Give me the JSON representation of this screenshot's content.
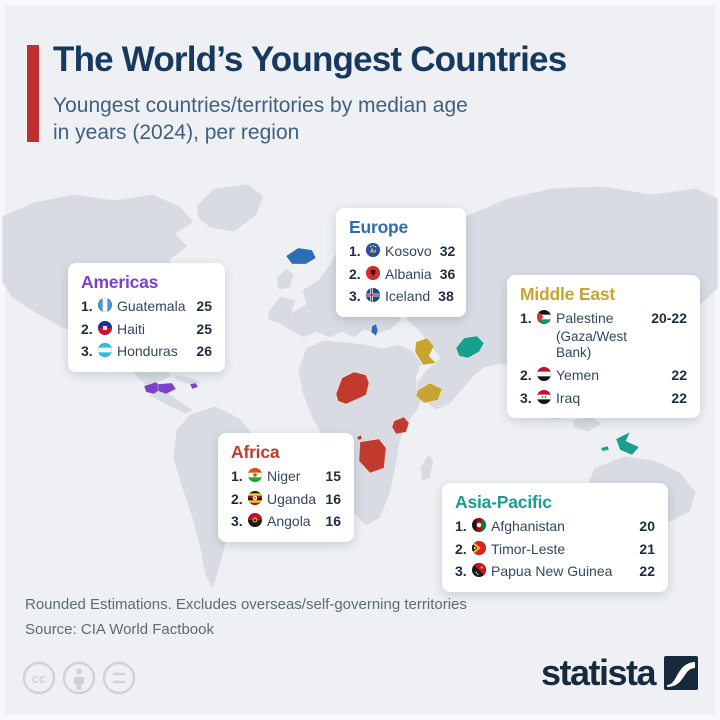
{
  "header": {
    "title": "The World’s Youngest Countries",
    "subtitle": "Youngest countries/territories by median age\nin years (2024), per region",
    "accent_color": "#c22f2f"
  },
  "regions": [
    {
      "key": "americas",
      "name": "Americas",
      "color": "#7c42c8",
      "entries": [
        {
          "rank": "1.",
          "flag": "guatemala",
          "country": "Guatemala",
          "value": "25"
        },
        {
          "rank": "2.",
          "flag": "haiti",
          "country": "Haiti",
          "value": "25"
        },
        {
          "rank": "3.",
          "flag": "honduras",
          "country": "Honduras",
          "value": "26"
        }
      ]
    },
    {
      "key": "europe",
      "name": "Europe",
      "color": "#2d6db7",
      "entries": [
        {
          "rank": "1.",
          "flag": "kosovo",
          "country": "Kosovo",
          "value": "32"
        },
        {
          "rank": "2.",
          "flag": "albania",
          "country": "Albania",
          "value": "36"
        },
        {
          "rank": "3.",
          "flag": "iceland",
          "country": "Iceland",
          "value": "38"
        }
      ]
    },
    {
      "key": "middle-east",
      "name": "Middle East",
      "color": "#c9a42f",
      "entries": [
        {
          "rank": "1.",
          "flag": "palestine",
          "country": "Palestine",
          "sub": "(Gaza/West Bank)",
          "value": "20-22"
        },
        {
          "rank": "2.",
          "flag": "yemen",
          "country": "Yemen",
          "value": "22"
        },
        {
          "rank": "3.",
          "flag": "iraq",
          "country": "Iraq",
          "value": "22"
        }
      ]
    },
    {
      "key": "africa",
      "name": "Africa",
      "color": "#c23a2e",
      "entries": [
        {
          "rank": "1.",
          "flag": "niger",
          "country": "Niger",
          "value": "15"
        },
        {
          "rank": "2.",
          "flag": "uganda",
          "country": "Uganda",
          "value": "16"
        },
        {
          "rank": "3.",
          "flag": "angola",
          "country": "Angola",
          "value": "16"
        }
      ]
    },
    {
      "key": "asia-pacific",
      "name": "Asia-Pacific",
      "color": "#189f8d",
      "entries": [
        {
          "rank": "1.",
          "flag": "afghanistan",
          "country": "Afghanistan",
          "value": "20"
        },
        {
          "rank": "2.",
          "flag": "timor-leste",
          "country": "Timor-Leste",
          "value": "21"
        },
        {
          "rank": "3.",
          "flag": "papua-new-guinea",
          "country": "Papua New Guinea",
          "value": "22"
        }
      ]
    }
  ],
  "map": {
    "land_color": "#d8dce2",
    "background": "#eef0f4"
  },
  "footer": {
    "note": "Rounded Estimations. Excludes overseas/self-governing territories",
    "source": "Source: CIA World Factbook",
    "license_icons": [
      "cc-icon",
      "attribution-icon",
      "equal-icon"
    ],
    "brand": "statista",
    "brand_color": "#16293d"
  },
  "chart_data": {
    "type": "table",
    "title": "The World’s Youngest Countries",
    "subtitle": "Youngest countries/territories by median age in years (2024), per region",
    "unit": "median age in years",
    "groups": [
      {
        "region": "Americas",
        "rows": [
          [
            "Guatemala",
            25
          ],
          [
            "Haiti",
            25
          ],
          [
            "Honduras",
            26
          ]
        ]
      },
      {
        "region": "Europe",
        "rows": [
          [
            "Kosovo",
            32
          ],
          [
            "Albania",
            36
          ],
          [
            "Iceland",
            38
          ]
        ]
      },
      {
        "region": "Middle East",
        "rows": [
          [
            "Palestine (Gaza/West Bank)",
            "20-22"
          ],
          [
            "Yemen",
            22
          ],
          [
            "Iraq",
            22
          ]
        ]
      },
      {
        "region": "Africa",
        "rows": [
          [
            "Niger",
            15
          ],
          [
            "Uganda",
            16
          ],
          [
            "Angola",
            16
          ]
        ]
      },
      {
        "region": "Asia-Pacific",
        "rows": [
          [
            "Afghanistan",
            20
          ],
          [
            "Timor-Leste",
            21
          ],
          [
            "Papua New Guinea",
            22
          ]
        ]
      }
    ],
    "source": "CIA World Factbook"
  }
}
